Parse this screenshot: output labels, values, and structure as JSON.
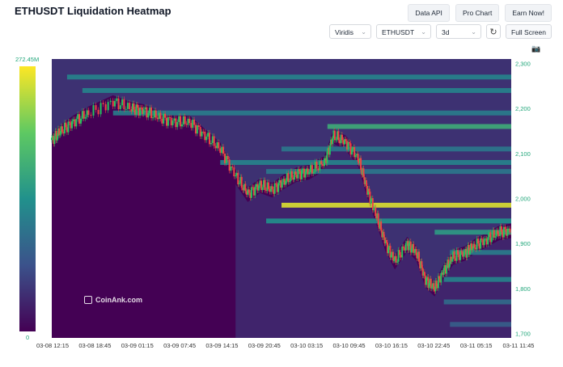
{
  "title": "ETHUSDT Liquidation Heatmap",
  "buttons": {
    "data_api": "Data API",
    "pro_chart": "Pro Chart",
    "earn_now": "Earn Now!"
  },
  "controls": {
    "colormap": "Viridis",
    "symbol": "ETHUSDT",
    "range": "3d",
    "fullscreen": "Full Screen"
  },
  "colorbar": {
    "max_label": "272.45M",
    "min_label": "0"
  },
  "watermark": "CoinAnk.com",
  "colors": {
    "candle_up": "#22c55e",
    "candle_down": "#ef4444",
    "axis_text": "#21a67a",
    "background": "#440154"
  },
  "chart_data": {
    "type": "heatmap",
    "title": "ETHUSDT Liquidation Heatmap",
    "x_ticks": [
      "03-08 12:15",
      "03-08 18:45",
      "03-09 01:15",
      "03-09 07:45",
      "03-09 14:15",
      "03-09 20:45",
      "03-10 03:15",
      "03-10 09:45",
      "03-10 16:15",
      "03-10 22:45",
      "03-11 05:15",
      "03-11 11:45"
    ],
    "y_ticks": [
      1700,
      1800,
      1900,
      2000,
      2100,
      2200,
      2300
    ],
    "y_tick_labels": [
      "1,700",
      "1,800",
      "1,900",
      "2,000",
      "2,100",
      "2,200",
      "2,300"
    ],
    "ylim": [
      1690,
      2310
    ],
    "colorscale": "Viridis",
    "color_range": [
      0,
      272450000
    ],
    "price_path": [
      [
        0,
        2130
      ],
      [
        0.3,
        2150
      ],
      [
        0.7,
        2170
      ],
      [
        1.2,
        2190
      ],
      [
        2.0,
        2215
      ],
      [
        2.6,
        2200
      ],
      [
        3.0,
        2195
      ],
      [
        3.5,
        2180
      ],
      [
        4.0,
        2170
      ],
      [
        4.5,
        2170
      ],
      [
        5.0,
        2140
      ],
      [
        5.5,
        2110
      ],
      [
        6.0,
        2050
      ],
      [
        6.4,
        2010
      ],
      [
        6.8,
        2030
      ],
      [
        7.2,
        2020
      ],
      [
        7.6,
        2040
      ],
      [
        8.0,
        2055
      ],
      [
        8.4,
        2060
      ],
      [
        8.9,
        2080
      ],
      [
        9.2,
        2140
      ],
      [
        9.6,
        2125
      ],
      [
        10.0,
        2090
      ],
      [
        10.3,
        2020
      ],
      [
        10.6,
        1960
      ],
      [
        10.9,
        1900
      ],
      [
        11.2,
        1860
      ],
      [
        11.6,
        1900
      ],
      [
        11.9,
        1880
      ],
      [
        12.2,
        1820
      ],
      [
        12.5,
        1800
      ],
      [
        12.8,
        1840
      ],
      [
        13.1,
        1870
      ],
      [
        13.5,
        1880
      ],
      [
        13.8,
        1895
      ],
      [
        14.2,
        1910
      ],
      [
        14.6,
        1925
      ],
      [
        15.0,
        1930
      ]
    ],
    "liquidation_bands": [
      {
        "price": 2270,
        "intensity": 0.45,
        "from": 0.5
      },
      {
        "price": 2240,
        "intensity": 0.45,
        "from": 1.0
      },
      {
        "price": 2190,
        "intensity": 0.42,
        "from": 2.0
      },
      {
        "price": 2160,
        "intensity": 0.62,
        "from": 9.0
      },
      {
        "price": 2110,
        "intensity": 0.4,
        "from": 7.5
      },
      {
        "price": 2080,
        "intensity": 0.45,
        "from": 5.5
      },
      {
        "price": 2060,
        "intensity": 0.4,
        "from": 7.0
      },
      {
        "price": 1985,
        "intensity": 0.95,
        "from": 7.5
      },
      {
        "price": 1950,
        "intensity": 0.5,
        "from": 7.0
      },
      {
        "price": 1925,
        "intensity": 0.55,
        "from": 12.5
      },
      {
        "price": 1880,
        "intensity": 0.42,
        "from": 13.0
      },
      {
        "price": 1820,
        "intensity": 0.45,
        "from": 12.8
      },
      {
        "price": 1770,
        "intensity": 0.35,
        "from": 12.8
      },
      {
        "price": 1720,
        "intensity": 0.3,
        "from": 13.0
      }
    ]
  }
}
